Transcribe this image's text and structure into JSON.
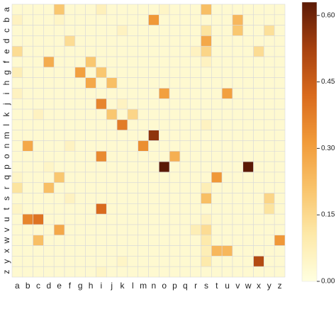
{
  "chart_data": {
    "type": "heatmap",
    "title": "",
    "xlabel": "",
    "ylabel": "",
    "x_labels": [
      "a",
      "b",
      "c",
      "d",
      "e",
      "f",
      "g",
      "h",
      "i",
      "j",
      "k",
      "l",
      "m",
      "n",
      "o",
      "p",
      "q",
      "r",
      "s",
      "t",
      "u",
      "v",
      "w",
      "x",
      "y",
      "z"
    ],
    "y_labels": [
      "a",
      "b",
      "c",
      "d",
      "e",
      "f",
      "g",
      "h",
      "i",
      "j",
      "k",
      "l",
      "m",
      "n",
      "o",
      "p",
      "q",
      "r",
      "s",
      "t",
      "u",
      "v",
      "w",
      "x",
      "y",
      "z"
    ],
    "value_range": [
      0.0,
      0.63
    ],
    "colorscale": [
      "#ffffe0",
      "#fde9a9",
      "#f9c36a",
      "#f19a38",
      "#d96a1d",
      "#a7410f",
      "#5b1a06"
    ],
    "colorbar": {
      "ticks": [
        0.0,
        0.15,
        0.3,
        0.45,
        0.6
      ],
      "tick_labels": [
        "0.00",
        "0.15",
        "0.30",
        "0.45",
        "0.60"
      ]
    },
    "background_value": 0.03,
    "cells": [
      {
        "row": "a",
        "col": "e",
        "value": 0.2
      },
      {
        "row": "a",
        "col": "i",
        "value": 0.07
      },
      {
        "row": "a",
        "col": "o",
        "value": 0.05
      },
      {
        "row": "a",
        "col": "s",
        "value": 0.22
      },
      {
        "row": "b",
        "col": "a",
        "value": 0.06
      },
      {
        "row": "b",
        "col": "e",
        "value": 0.05
      },
      {
        "row": "b",
        "col": "n",
        "value": 0.32
      },
      {
        "row": "b",
        "col": "v",
        "value": 0.24
      },
      {
        "row": "c",
        "col": "k",
        "value": 0.06
      },
      {
        "row": "c",
        "col": "s",
        "value": 0.12
      },
      {
        "row": "c",
        "col": "v",
        "value": 0.2
      },
      {
        "row": "c",
        "col": "y",
        "value": 0.13
      },
      {
        "row": "d",
        "col": "f",
        "value": 0.14
      },
      {
        "row": "d",
        "col": "s",
        "value": 0.28
      },
      {
        "row": "e",
        "col": "a",
        "value": 0.14
      },
      {
        "row": "e",
        "col": "r",
        "value": 0.06
      },
      {
        "row": "e",
        "col": "s",
        "value": 0.16
      },
      {
        "row": "e",
        "col": "x",
        "value": 0.14
      },
      {
        "row": "f",
        "col": "d",
        "value": 0.27
      },
      {
        "row": "f",
        "col": "h",
        "value": 0.2
      },
      {
        "row": "f",
        "col": "s",
        "value": 0.06
      },
      {
        "row": "g",
        "col": "a",
        "value": 0.08
      },
      {
        "row": "g",
        "col": "g",
        "value": 0.3
      },
      {
        "row": "g",
        "col": "i",
        "value": 0.2
      },
      {
        "row": "h",
        "col": "h",
        "value": 0.28
      },
      {
        "row": "h",
        "col": "j",
        "value": 0.22
      },
      {
        "row": "i",
        "col": "a",
        "value": 0.06
      },
      {
        "row": "i",
        "col": "o",
        "value": 0.3
      },
      {
        "row": "i",
        "col": "u",
        "value": 0.3
      },
      {
        "row": "j",
        "col": "i",
        "value": 0.36
      },
      {
        "row": "j",
        "col": "k",
        "value": 0.06
      },
      {
        "row": "k",
        "col": "c",
        "value": 0.06
      },
      {
        "row": "k",
        "col": "j",
        "value": 0.2
      },
      {
        "row": "k",
        "col": "l",
        "value": 0.16
      },
      {
        "row": "l",
        "col": "k",
        "value": 0.38
      },
      {
        "row": "l",
        "col": "s",
        "value": 0.06
      },
      {
        "row": "m",
        "col": "n",
        "value": 0.56
      },
      {
        "row": "n",
        "col": "b",
        "value": 0.28
      },
      {
        "row": "n",
        "col": "m",
        "value": 0.34
      },
      {
        "row": "n",
        "col": "f",
        "value": 0.06
      },
      {
        "row": "o",
        "col": "i",
        "value": 0.35
      },
      {
        "row": "o",
        "col": "p",
        "value": 0.26
      },
      {
        "row": "p",
        "col": "o",
        "value": 0.63
      },
      {
        "row": "p",
        "col": "w",
        "value": 0.63
      },
      {
        "row": "p",
        "col": "d",
        "value": 0.05
      },
      {
        "row": "q",
        "col": "e",
        "value": 0.2
      },
      {
        "row": "q",
        "col": "t",
        "value": 0.32
      },
      {
        "row": "q",
        "col": "a",
        "value": 0.05
      },
      {
        "row": "r",
        "col": "a",
        "value": 0.12
      },
      {
        "row": "r",
        "col": "d",
        "value": 0.22
      },
      {
        "row": "r",
        "col": "s",
        "value": 0.08
      },
      {
        "row": "s",
        "col": "s",
        "value": 0.22
      },
      {
        "row": "s",
        "col": "y",
        "value": 0.16
      },
      {
        "row": "s",
        "col": "f",
        "value": 0.06
      },
      {
        "row": "t",
        "col": "i",
        "value": 0.42
      },
      {
        "row": "t",
        "col": "y",
        "value": 0.12
      },
      {
        "row": "t",
        "col": "a",
        "value": 0.05
      },
      {
        "row": "u",
        "col": "b",
        "value": 0.36
      },
      {
        "row": "u",
        "col": "c",
        "value": 0.4
      },
      {
        "row": "u",
        "col": "s",
        "value": 0.06
      },
      {
        "row": "v",
        "col": "e",
        "value": 0.28
      },
      {
        "row": "v",
        "col": "r",
        "value": 0.08
      },
      {
        "row": "v",
        "col": "s",
        "value": 0.14
      },
      {
        "row": "w",
        "col": "c",
        "value": 0.22
      },
      {
        "row": "w",
        "col": "s",
        "value": 0.1
      },
      {
        "row": "w",
        "col": "z",
        "value": 0.32
      },
      {
        "row": "x",
        "col": "t",
        "value": 0.24
      },
      {
        "row": "x",
        "col": "u",
        "value": 0.24
      },
      {
        "row": "x",
        "col": "s",
        "value": 0.08
      },
      {
        "row": "y",
        "col": "x",
        "value": 0.5
      },
      {
        "row": "y",
        "col": "s",
        "value": 0.1
      },
      {
        "row": "y",
        "col": "k",
        "value": 0.05
      },
      {
        "row": "z",
        "col": "i",
        "value": 0.05
      }
    ]
  }
}
